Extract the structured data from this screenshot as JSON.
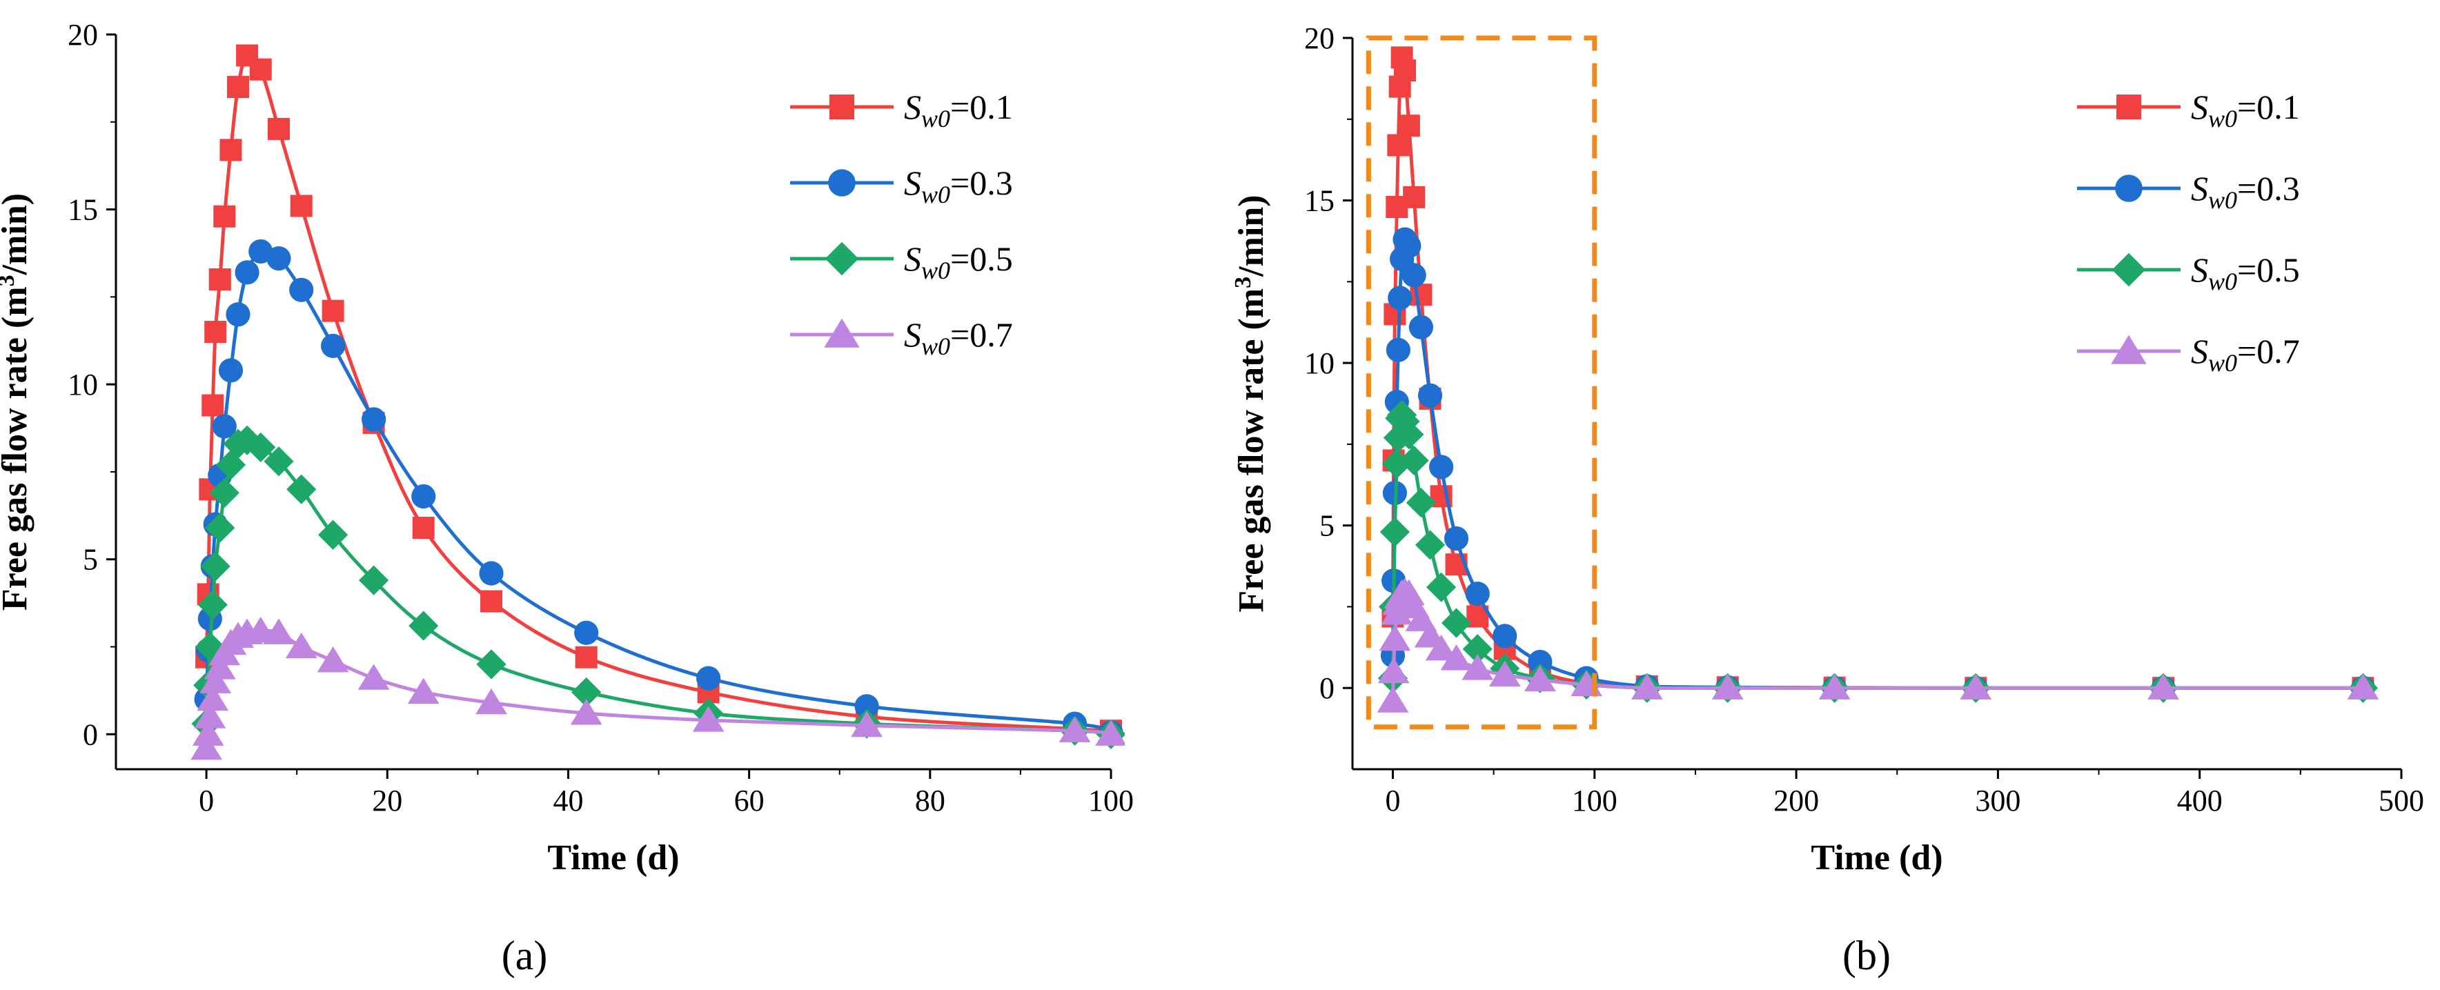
{
  "panel_captions": [
    "(a)",
    "(b)"
  ],
  "legend_labels": [
    {
      "sym": "S",
      "sub": "w0",
      "val": "=0.1"
    },
    {
      "sym": "S",
      "sub": "w0",
      "val": "=0.3"
    },
    {
      "sym": "S",
      "sub": "w0",
      "val": "=0.5"
    },
    {
      "sym": "S",
      "sub": "w0",
      "val": "=0.7"
    }
  ],
  "colors": {
    "s01": "#f04040",
    "s03": "#1f6fd0",
    "s05": "#1ea868",
    "s07": "#c085e0",
    "box": "#f08a1a"
  },
  "chart_data": [
    {
      "type": "line",
      "title": "",
      "xlabel": "Time (d)",
      "ylabel_main": "Free gas flow rate (m",
      "ylabel_sup": "3",
      "ylabel_tail": "/min)",
      "xlim": [
        -10,
        100
      ],
      "ylim": [
        -1,
        20
      ],
      "xticks": [
        0,
        20,
        40,
        60,
        80,
        100
      ],
      "yticks": [
        0,
        5,
        10,
        15,
        20
      ],
      "series": [
        {
          "name": "Sw0=0.1",
          "marker": "square",
          "x": [
            0,
            0.2,
            0.4,
            0.7,
            1,
            1.5,
            2,
            2.7,
            3.5,
            4.5,
            6,
            8,
            10.5,
            14,
            18.5,
            24,
            31.5,
            42,
            55.5,
            73,
            96,
            100
          ],
          "y": [
            2.2,
            4,
            7,
            9.4,
            11.5,
            13,
            14.8,
            16.7,
            18.5,
            19.4,
            19.0,
            17.3,
            15.1,
            12.1,
            8.9,
            5.9,
            3.8,
            2.2,
            1.2,
            0.5,
            0.15,
            0.1
          ]
        },
        {
          "name": "Sw0=0.3",
          "marker": "circle",
          "x": [
            0,
            0.2,
            0.4,
            0.7,
            1,
            1.5,
            2,
            2.7,
            3.5,
            4.5,
            6,
            8,
            10.5,
            14,
            18.5,
            24,
            31.5,
            42,
            55.5,
            73,
            96,
            100
          ],
          "y": [
            1,
            2.4,
            3.3,
            4.8,
            6,
            7.4,
            8.8,
            10.4,
            12.0,
            13.2,
            13.8,
            13.6,
            12.7,
            11.1,
            9.0,
            6.8,
            4.6,
            2.9,
            1.6,
            0.8,
            0.3,
            0.05
          ]
        },
        {
          "name": "Sw0=0.5",
          "marker": "diamond",
          "x": [
            0,
            0.2,
            0.4,
            0.7,
            1,
            1.5,
            2,
            2.7,
            3.5,
            4.5,
            6,
            8,
            10.5,
            14,
            18.5,
            24,
            31.5,
            42,
            55.5,
            73,
            96,
            100
          ],
          "y": [
            0.3,
            1.4,
            2.5,
            3.7,
            4.8,
            5.9,
            6.9,
            7.7,
            8.3,
            8.4,
            8.2,
            7.8,
            7.0,
            5.7,
            4.4,
            3.1,
            2.0,
            1.2,
            0.6,
            0.3,
            0.1,
            0.0
          ]
        },
        {
          "name": "Sw0=0.7",
          "marker": "triangle",
          "x": [
            0,
            0.2,
            0.4,
            0.7,
            1,
            1.5,
            2,
            2.7,
            3.5,
            4.5,
            6,
            8,
            10.5,
            14,
            18.5,
            24,
            31.5,
            42,
            55.5,
            73,
            96,
            100
          ],
          "y": [
            -0.4,
            0,
            0.5,
            1.0,
            1.5,
            1.9,
            2.3,
            2.6,
            2.8,
            2.9,
            2.95,
            2.9,
            2.5,
            2.1,
            1.6,
            1.2,
            0.9,
            0.6,
            0.4,
            0.25,
            0.1,
            0.0
          ]
        }
      ]
    },
    {
      "type": "line",
      "title": "",
      "xlabel": "Time (d)",
      "ylabel_main": "Free gas flow rate (m",
      "ylabel_sup": "3",
      "ylabel_tail": "/min)",
      "xlim": [
        -20,
        500
      ],
      "ylim": [
        -2.5,
        20
      ],
      "xticks": [
        0,
        100,
        200,
        300,
        400,
        500
      ],
      "yticks": [
        0,
        5,
        10,
        15,
        20
      ],
      "highlight_box": {
        "x0": -12,
        "x1": 100,
        "y0": -1.2,
        "y1": 20
      },
      "series": [
        {
          "name": "Sw0=0.1",
          "marker": "square",
          "x": [
            0,
            0.4,
            1,
            2,
            2.7,
            3.5,
            4.5,
            6,
            8,
            10.5,
            14,
            18.5,
            24,
            31.5,
            42,
            55.5,
            73,
            96,
            126,
            166,
            219,
            289,
            382,
            481
          ],
          "y": [
            2.2,
            7,
            11.5,
            14.8,
            16.7,
            18.5,
            19.4,
            19.0,
            17.3,
            15.1,
            12.1,
            8.9,
            5.9,
            3.8,
            2.2,
            1.2,
            0.5,
            0.15,
            0.05,
            0.02,
            0.01,
            0,
            0,
            0
          ]
        },
        {
          "name": "Sw0=0.3",
          "marker": "circle",
          "x": [
            0,
            0.4,
            1,
            2,
            2.7,
            3.5,
            4.5,
            6,
            8,
            10.5,
            14,
            18.5,
            24,
            31.5,
            42,
            55.5,
            73,
            96,
            126,
            166,
            219,
            289,
            382,
            481
          ],
          "y": [
            1,
            3.3,
            6,
            8.8,
            10.4,
            12.0,
            13.2,
            13.8,
            13.6,
            12.7,
            11.1,
            9.0,
            6.8,
            4.6,
            2.9,
            1.6,
            0.8,
            0.3,
            0.05,
            0.02,
            0,
            0,
            0,
            0
          ]
        },
        {
          "name": "Sw0=0.5",
          "marker": "diamond",
          "x": [
            0,
            0.4,
            1,
            2,
            2.7,
            3.5,
            4.5,
            6,
            8,
            10.5,
            14,
            18.5,
            24,
            31.5,
            42,
            55.5,
            73,
            96,
            126,
            166,
            219,
            289,
            382,
            481
          ],
          "y": [
            0.3,
            2.5,
            4.8,
            6.9,
            7.7,
            8.3,
            8.4,
            8.2,
            7.8,
            7.0,
            5.7,
            4.4,
            3.1,
            2.0,
            1.2,
            0.6,
            0.3,
            0.1,
            0,
            0,
            0,
            0,
            0,
            0
          ]
        },
        {
          "name": "Sw0=0.7",
          "marker": "triangle",
          "x": [
            0,
            0.4,
            1,
            2,
            2.7,
            3.5,
            4.5,
            6,
            8,
            10.5,
            14,
            18.5,
            24,
            31.5,
            42,
            55.5,
            73,
            96,
            126,
            166,
            219,
            289,
            382,
            481
          ],
          "y": [
            -0.4,
            0.5,
            1.5,
            2.3,
            2.6,
            2.8,
            2.9,
            2.95,
            2.9,
            2.5,
            2.1,
            1.6,
            1.2,
            0.9,
            0.6,
            0.4,
            0.25,
            0.1,
            0,
            0,
            0,
            0,
            0,
            0
          ]
        }
      ]
    }
  ]
}
